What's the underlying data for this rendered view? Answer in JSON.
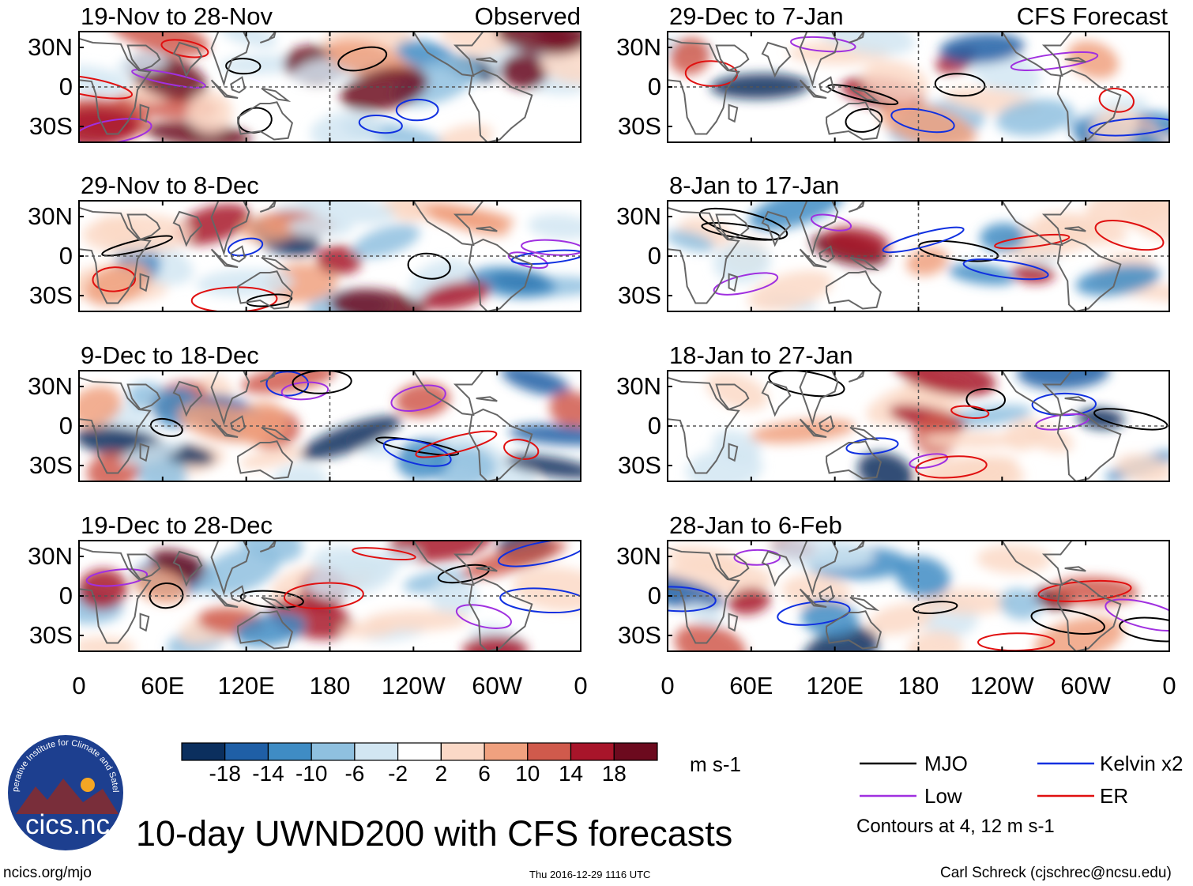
{
  "chart_data": {
    "type": "heatmap",
    "title": "10-day UWND200 with CFS forecasts",
    "variable": "UWND200",
    "units": "m s-1",
    "x_ticks": [
      "0",
      "60E",
      "120E",
      "180",
      "120W",
      "60W",
      "0"
    ],
    "y_ticks": [
      "30N",
      "0",
      "30S"
    ],
    "panel_tags": {
      "observed": "Observed",
      "forecast": "CFS Forecast"
    },
    "panels": [
      {
        "period": "19-Nov to 28-Nov",
        "column": "observed"
      },
      {
        "period": "29-Nov to 8-Dec",
        "column": "observed"
      },
      {
        "period": "9-Dec to 18-Dec",
        "column": "observed"
      },
      {
        "period": "19-Dec to 28-Dec",
        "column": "observed"
      },
      {
        "period": "29-Dec to 7-Jan",
        "column": "forecast"
      },
      {
        "period": "8-Jan to 17-Jan",
        "column": "forecast"
      },
      {
        "period": "18-Jan to 27-Jan",
        "column": "forecast"
      },
      {
        "period": "28-Jan to 6-Feb",
        "column": "forecast"
      }
    ],
    "colorbar": {
      "ticks": [
        "-18",
        "-14",
        "-10",
        "-6",
        "-2",
        "2",
        "6",
        "10",
        "14",
        "18"
      ],
      "colors": [
        "#0b2f5e",
        "#1f5fa6",
        "#3f8cc4",
        "#8fc0df",
        "#d2e6f2",
        "#ffffff",
        "#fbd9c7",
        "#f0a17f",
        "#d05a4c",
        "#a8152a",
        "#6c0a1e"
      ],
      "unit": "m s-1"
    },
    "legend": [
      {
        "label": "MJO",
        "color": "#000000"
      },
      {
        "label": "Kelvin x2",
        "color": "#1030e0"
      },
      {
        "label": "Low",
        "color": "#a030e0"
      },
      {
        "label": "ER",
        "color": "#e01010"
      }
    ],
    "contour_note": "Contours at 4, 12 m s-1"
  },
  "logo": {
    "name": "cicsnc-logo",
    "text": "cics.nc",
    "arc_text": "Cooperative Institute for Climate and Satellites"
  },
  "footer": {
    "url": "ncics.org/mjo",
    "timestamp": "Thu 2016-12-29 1116 UTC",
    "credit": "Carl Schreck (cjschrec@ncsu.edu)"
  }
}
